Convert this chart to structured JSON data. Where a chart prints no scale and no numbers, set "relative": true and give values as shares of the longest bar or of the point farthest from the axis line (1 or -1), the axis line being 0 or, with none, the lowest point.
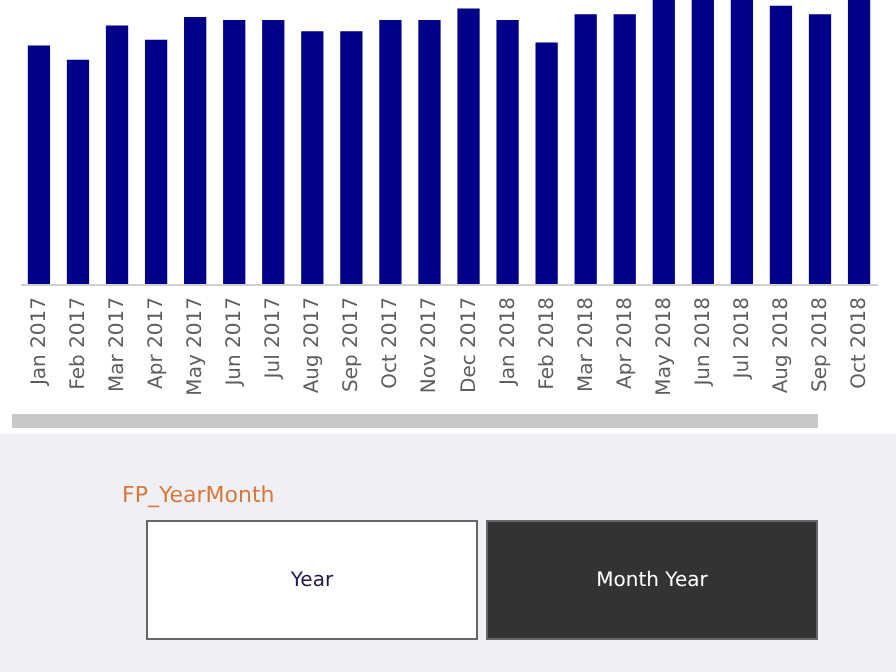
{
  "chart_data": [
    {
      "type": "bar",
      "relative": true,
      "color": "#000088",
      "categories": [
        "Jan 2017",
        "Feb 2017",
        "Mar 2017",
        "Apr 2017",
        "May 2017",
        "Jun 2017",
        "Jul 2017",
        "Aug 2017",
        "Sep 2017",
        "Oct 2017",
        "Nov 2017",
        "Dec 2017",
        "Jan 2018",
        "Feb 2018",
        "Mar 2018",
        "Apr 2018",
        "May 2018",
        "Jun 2018",
        "Jul 2018",
        "Aug 2018",
        "Sep 2018",
        "Oct 2018"
      ],
      "values": [
        0.84,
        0.79,
        0.91,
        0.86,
        0.94,
        0.93,
        0.93,
        0.89,
        0.89,
        0.93,
        0.93,
        0.97,
        0.93,
        0.85,
        0.95,
        0.95,
        1,
        1,
        1,
        0.98,
        0.95,
        1
      ]
    },
    {
      "type": "other",
      "title": "FP_YearMonth",
      "categories": [
        "Year",
        "Month Year"
      ]
    }
  ]
}
